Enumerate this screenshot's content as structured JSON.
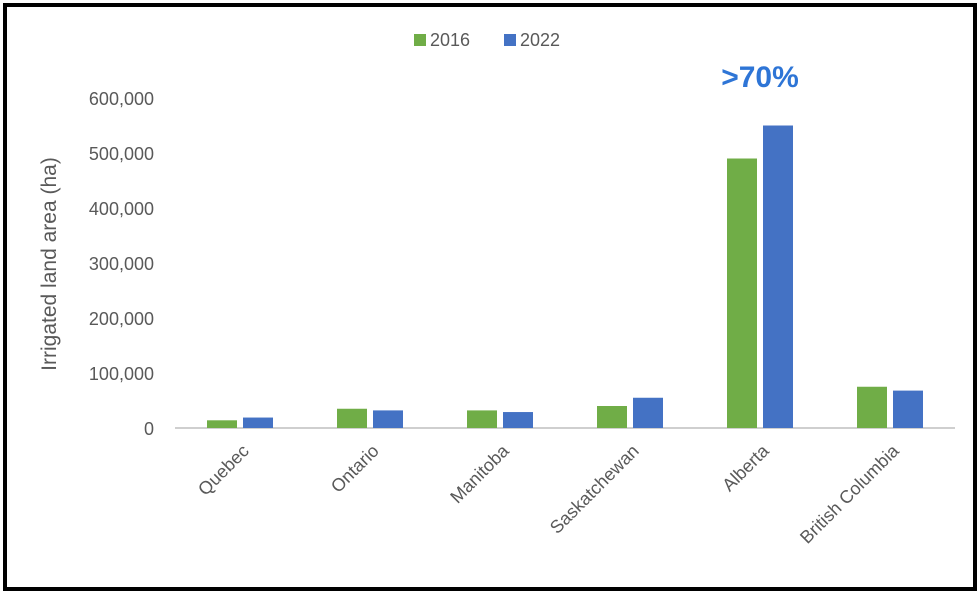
{
  "chart_data": {
    "type": "bar",
    "ylabel": "Irrigated land area (ha)",
    "xlabel": "",
    "categories": [
      "Quebec",
      "Ontario",
      "Manitoba",
      "Saskatchewan",
      "Alberta",
      "British Columbia"
    ],
    "series": [
      {
        "name": "2016",
        "color": "#70ad47",
        "values": [
          14000,
          35000,
          32000,
          40000,
          490000,
          75000
        ]
      },
      {
        "name": "2022",
        "color": "#4472c4",
        "values": [
          19000,
          32000,
          29000,
          55000,
          550000,
          68000
        ]
      }
    ],
    "ylim": [
      0,
      600000
    ],
    "yticks": [
      0,
      100000,
      200000,
      300000,
      400000,
      500000,
      600000
    ],
    "ytick_labels": [
      "0",
      "100,000",
      "200,000",
      "300,000",
      "400,000",
      "500,000",
      "600,000"
    ],
    "grid": false,
    "legend_position": "top-center",
    "annotation": {
      "text": ">70%",
      "color": "#2e75d6",
      "near_category": "Alberta"
    }
  }
}
